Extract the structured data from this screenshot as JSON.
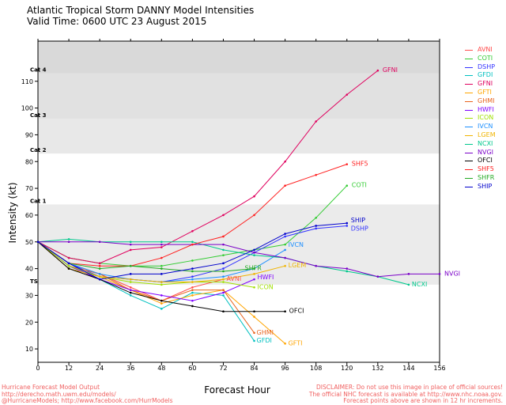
{
  "header": {
    "title_line1": "Atlantic Tropical Storm DANNY Model Intensities",
    "title_line2": "Valid Time: 0600 UTC 23 August 2015"
  },
  "footer": {
    "left": "Hurricane Forecast Model Output\nhttp://derecho.math.uwm.edu/models/\n@HurricaneModels; http://www.facebook.com/HurrModels",
    "right": "DISCLAIMER: Do not use this image in place of official sources!\nThe official NHC forecast is available at http://www.nhc.noaa.gov.\nForecast points above are shown in 12 hr increments."
  },
  "chart_data": {
    "type": "line",
    "title": "Atlantic Tropical Storm DANNY Model Intensities",
    "xlabel": "Forecast Hour",
    "ylabel": "Intensity (kt)",
    "xlim": [
      0,
      156
    ],
    "ylim": [
      5,
      125
    ],
    "x_ticks": [
      0,
      12,
      24,
      36,
      48,
      60,
      72,
      84,
      96,
      108,
      120,
      132,
      144,
      156
    ],
    "y_ticks": [
      10,
      20,
      30,
      40,
      50,
      60,
      70,
      80,
      90,
      100,
      110
    ],
    "grid": false,
    "legend_position": "right",
    "intensity_bands": [
      {
        "label": "TS",
        "min": 34,
        "max": 64,
        "color": "#ebebeb"
      },
      {
        "label": "Cat 1",
        "min": 64,
        "max": 83,
        "color": "#ffffff"
      },
      {
        "label": "Cat 2",
        "min": 83,
        "max": 96,
        "color": "#e8e8e8"
      },
      {
        "label": "Cat 3",
        "min": 96,
        "max": 113,
        "color": "#e1e1e1"
      },
      {
        "label": "Cat 4",
        "min": 113,
        "max": 125,
        "color": "#d9d9d9"
      }
    ],
    "series": [
      {
        "name": "AVNI",
        "color": "#ff4d4d",
        "x": [
          0,
          12,
          24,
          36,
          48,
          60,
          72
        ],
        "values": [
          50,
          42,
          38,
          33,
          28,
          33,
          36
        ]
      },
      {
        "name": "COTI",
        "color": "#33cc33",
        "x": [
          0,
          12,
          24,
          36,
          48,
          60,
          72,
          84,
          96,
          108,
          120
        ],
        "values": [
          50,
          44,
          42,
          41,
          41,
          43,
          45,
          47,
          49,
          59,
          71
        ]
      },
      {
        "name": "DSHP",
        "color": "#3333ff",
        "x": [
          0,
          12,
          24,
          36,
          48,
          60,
          72,
          84,
          96,
          108,
          120
        ],
        "values": [
          50,
          42,
          37,
          36,
          35,
          37,
          40,
          46,
          52,
          55,
          56
        ]
      },
      {
        "name": "GFDI",
        "color": "#00c0c0",
        "x": [
          0,
          12,
          24,
          36,
          48,
          60,
          72,
          84
        ],
        "values": [
          50,
          41,
          36,
          30,
          25,
          31,
          30,
          13
        ]
      },
      {
        "name": "GFNI",
        "color": "#e0005e",
        "x": [
          0,
          12,
          24,
          36,
          48,
          60,
          72,
          84,
          96,
          108,
          120,
          132
        ],
        "values": [
          50,
          44,
          42,
          47,
          48,
          54,
          60,
          67,
          80,
          95,
          105,
          114
        ]
      },
      {
        "name": "GFTI",
        "color": "#ffa500",
        "x": [
          0,
          12,
          24,
          36,
          48,
          60,
          72,
          84,
          96
        ],
        "values": [
          50,
          40,
          37,
          32,
          27,
          30,
          32,
          22,
          12
        ]
      },
      {
        "name": "GHMI",
        "color": "#e8641e",
        "x": [
          0,
          12,
          24,
          36,
          48,
          60,
          72,
          84
        ],
        "values": [
          50,
          41,
          38,
          32,
          28,
          32,
          32,
          16
        ]
      },
      {
        "name": "HWFI",
        "color": "#7f00ff",
        "x": [
          0,
          12,
          24,
          36,
          48,
          60,
          72,
          84
        ],
        "values": [
          50,
          41,
          36,
          32,
          30,
          28,
          31,
          36
        ]
      },
      {
        "name": "ICON",
        "color": "#a0e000",
        "x": [
          0,
          12,
          24,
          36,
          48,
          60,
          72,
          84
        ],
        "values": [
          50,
          41,
          37,
          35,
          34,
          35,
          35,
          33
        ]
      },
      {
        "name": "IVCN",
        "color": "#1e90ff",
        "x": [
          0,
          12,
          24,
          36,
          48,
          60,
          72,
          84,
          96
        ],
        "values": [
          50,
          42,
          38,
          36,
          35,
          36,
          37,
          40,
          47
        ]
      },
      {
        "name": "LGEM",
        "color": "#f0b400",
        "x": [
          0,
          12,
          24,
          36,
          48,
          60,
          72,
          84,
          96
        ],
        "values": [
          50,
          40,
          37,
          36,
          35,
          35,
          36,
          38,
          41
        ]
      },
      {
        "name": "NCXI",
        "color": "#00c88c",
        "x": [
          0,
          12,
          24,
          36,
          48,
          60,
          72,
          84,
          96,
          108,
          120,
          132,
          144
        ],
        "values": [
          50,
          51,
          50,
          50,
          50,
          50,
          47,
          45,
          44,
          41,
          39,
          37,
          34
        ]
      },
      {
        "name": "NVGI",
        "color": "#7a00c8",
        "x": [
          0,
          12,
          24,
          36,
          48,
          60,
          72,
          84,
          96,
          108,
          120,
          132,
          144,
          156
        ],
        "values": [
          50,
          50,
          50,
          49,
          49,
          49,
          49,
          46,
          44,
          41,
          40,
          37,
          38,
          38
        ]
      },
      {
        "name": "OFCI",
        "color": "#000000",
        "x": [
          0,
          12,
          24,
          36,
          48,
          60,
          72,
          84,
          96
        ],
        "values": [
          50,
          40,
          36,
          31,
          28,
          26,
          24,
          24,
          24
        ]
      },
      {
        "name": "SHF5",
        "color": "#ff2020",
        "x": [
          0,
          12,
          24,
          36,
          48,
          60,
          72,
          84,
          96,
          108,
          120
        ],
        "values": [
          50,
          42,
          41,
          41,
          44,
          49,
          52,
          60,
          71,
          75,
          79
        ]
      },
      {
        "name": "SHFR",
        "color": "#22aa22",
        "x": [
          0,
          12,
          24,
          36,
          48,
          60,
          72,
          84
        ],
        "values": [
          50,
          42,
          40,
          41,
          40,
          39,
          39,
          40
        ]
      },
      {
        "name": "SHIP",
        "color": "#0000cc",
        "x": [
          0,
          12,
          24,
          36,
          48,
          60,
          72,
          84,
          96,
          108,
          120
        ],
        "values": [
          50,
          42,
          36,
          38,
          38,
          40,
          42,
          47,
          53,
          56,
          57
        ]
      }
    ],
    "end_labels": [
      {
        "name": "GFNI",
        "text": "GFNI",
        "dx": 6,
        "dy": 2
      },
      {
        "name": "SHF5",
        "text": "SHF5",
        "dx": 6,
        "dy": 2
      },
      {
        "name": "COTI",
        "text": "COTI",
        "dx": 6,
        "dy": 2
      },
      {
        "name": "SHIP",
        "text": "SHIP",
        "dx": 5,
        "dy": -1
      },
      {
        "name": "DSHP",
        "text": "DSHP",
        "dx": 5,
        "dy": 6
      },
      {
        "name": "NVGI",
        "text": "NVGI",
        "dx": 6,
        "dy": 2
      },
      {
        "name": "NCXI",
        "text": "NCXI",
        "dx": 4,
        "dy": 2
      },
      {
        "name": "IVCN",
        "text": "IVCN",
        "dx": 4,
        "dy": -4
      },
      {
        "name": "SHFR",
        "text": "SHFR",
        "dx": -12,
        "dy": 2
      },
      {
        "name": "LGEM",
        "text": "LGEM",
        "dx": 4,
        "dy": 2
      },
      {
        "name": "AVNI",
        "text": "AVNI",
        "dx": 4,
        "dy": 2
      },
      {
        "name": "HWFI",
        "text": "HWFI",
        "dx": 4,
        "dy": 0
      },
      {
        "name": "ICON",
        "text": "ICON",
        "dx": 4,
        "dy": 2
      },
      {
        "name": "OFCI",
        "text": "OFCI",
        "dx": 5,
        "dy": 2
      },
      {
        "name": "GHMI",
        "text": "GHMI",
        "dx": 3,
        "dy": 2
      },
      {
        "name": "GFDI",
        "text": "GFDI",
        "dx": 3,
        "dy": 2
      },
      {
        "name": "GFTI",
        "text": "GFTI",
        "dx": 4,
        "dy": 2
      }
    ]
  }
}
